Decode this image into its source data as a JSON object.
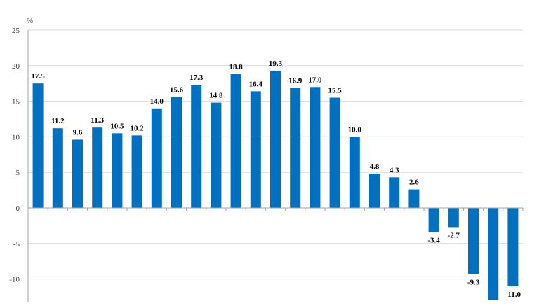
{
  "chart_data": {
    "type": "bar",
    "title": "",
    "xlabel": "",
    "ylabel": "%",
    "ylim": [
      -13,
      25
    ],
    "yticks": [
      25,
      20,
      15,
      10,
      5,
      0,
      -5,
      -10
    ],
    "grid": true,
    "legend": "none",
    "bar_color": "#0070C0",
    "values": [
      17.5,
      11.2,
      9.6,
      11.3,
      10.5,
      10.2,
      14.0,
      15.6,
      17.3,
      14.8,
      18.8,
      16.4,
      19.3,
      16.9,
      17.0,
      15.5,
      10.0,
      4.8,
      4.3,
      2.6,
      -3.4,
      -2.7,
      -9.3,
      -12.9,
      -11.0
    ],
    "labels": [
      "17.5",
      "11.2",
      "9.6",
      "11.3",
      "10.5",
      "10.2",
      "14.0",
      "15.6",
      "17.3",
      "14.8",
      "18.8",
      "16.4",
      "19.3",
      "16.9",
      "17.0",
      "15.5",
      "10.0",
      "4.8",
      "4.3",
      "2.6",
      "-3.4",
      "-2.7",
      "-9.3",
      "",
      "-11.0"
    ]
  }
}
